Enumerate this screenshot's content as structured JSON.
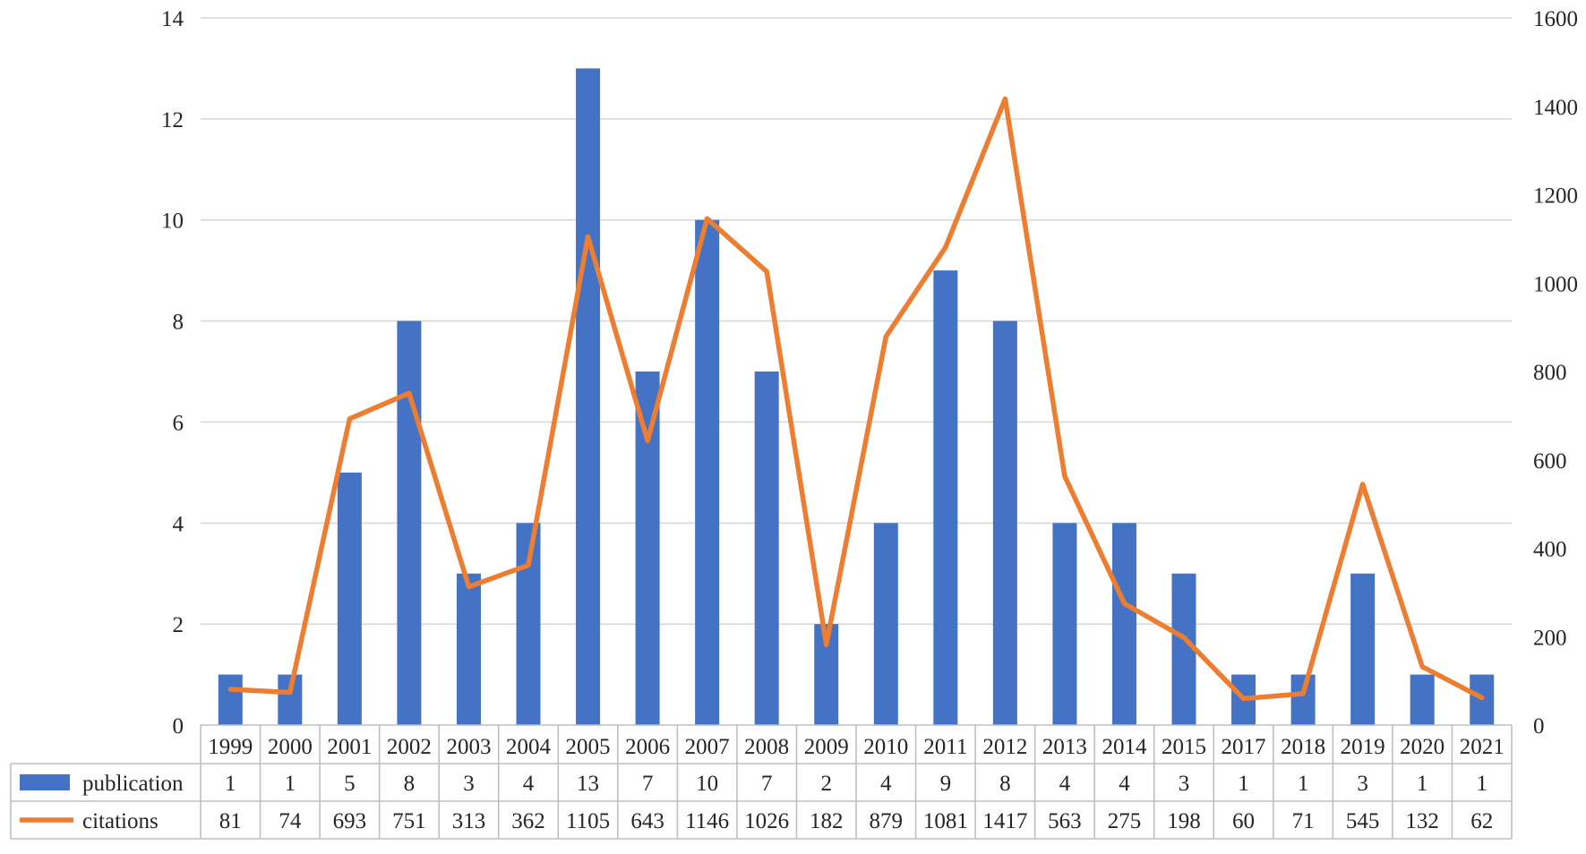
{
  "chart_data": {
    "type": "bar+line",
    "title": "",
    "categories": [
      "1999",
      "2000",
      "2001",
      "2002",
      "2003",
      "2004",
      "2005",
      "2006",
      "2007",
      "2008",
      "2009",
      "2010",
      "2011",
      "2012",
      "2013",
      "2014",
      "2015",
      "2017",
      "2018",
      "2019",
      "2020",
      "2021"
    ],
    "series": [
      {
        "name": "publication",
        "type": "bar",
        "axis": "left",
        "color": "#4472C4",
        "values": [
          1,
          1,
          5,
          8,
          3,
          4,
          13,
          7,
          10,
          7,
          2,
          4,
          9,
          8,
          4,
          4,
          3,
          1,
          1,
          3,
          1,
          1
        ]
      },
      {
        "name": "citations",
        "type": "line",
        "axis": "right",
        "color": "#ED7D31",
        "values": [
          81,
          74,
          693,
          751,
          313,
          362,
          1105,
          643,
          1146,
          1026,
          182,
          879,
          1081,
          1417,
          563,
          275,
          198,
          60,
          71,
          545,
          132,
          62
        ]
      }
    ],
    "y_left": {
      "min": 0,
      "max": 14,
      "ticks": [
        0,
        2,
        4,
        6,
        8,
        10,
        12,
        14
      ]
    },
    "y_right": {
      "min": 0,
      "max": 1600,
      "ticks": [
        0,
        200,
        400,
        600,
        800,
        1000,
        1200,
        1400,
        1600
      ]
    },
    "grid": true,
    "legend": "data-table-bottom",
    "xlabel": "",
    "ylabel": ""
  }
}
